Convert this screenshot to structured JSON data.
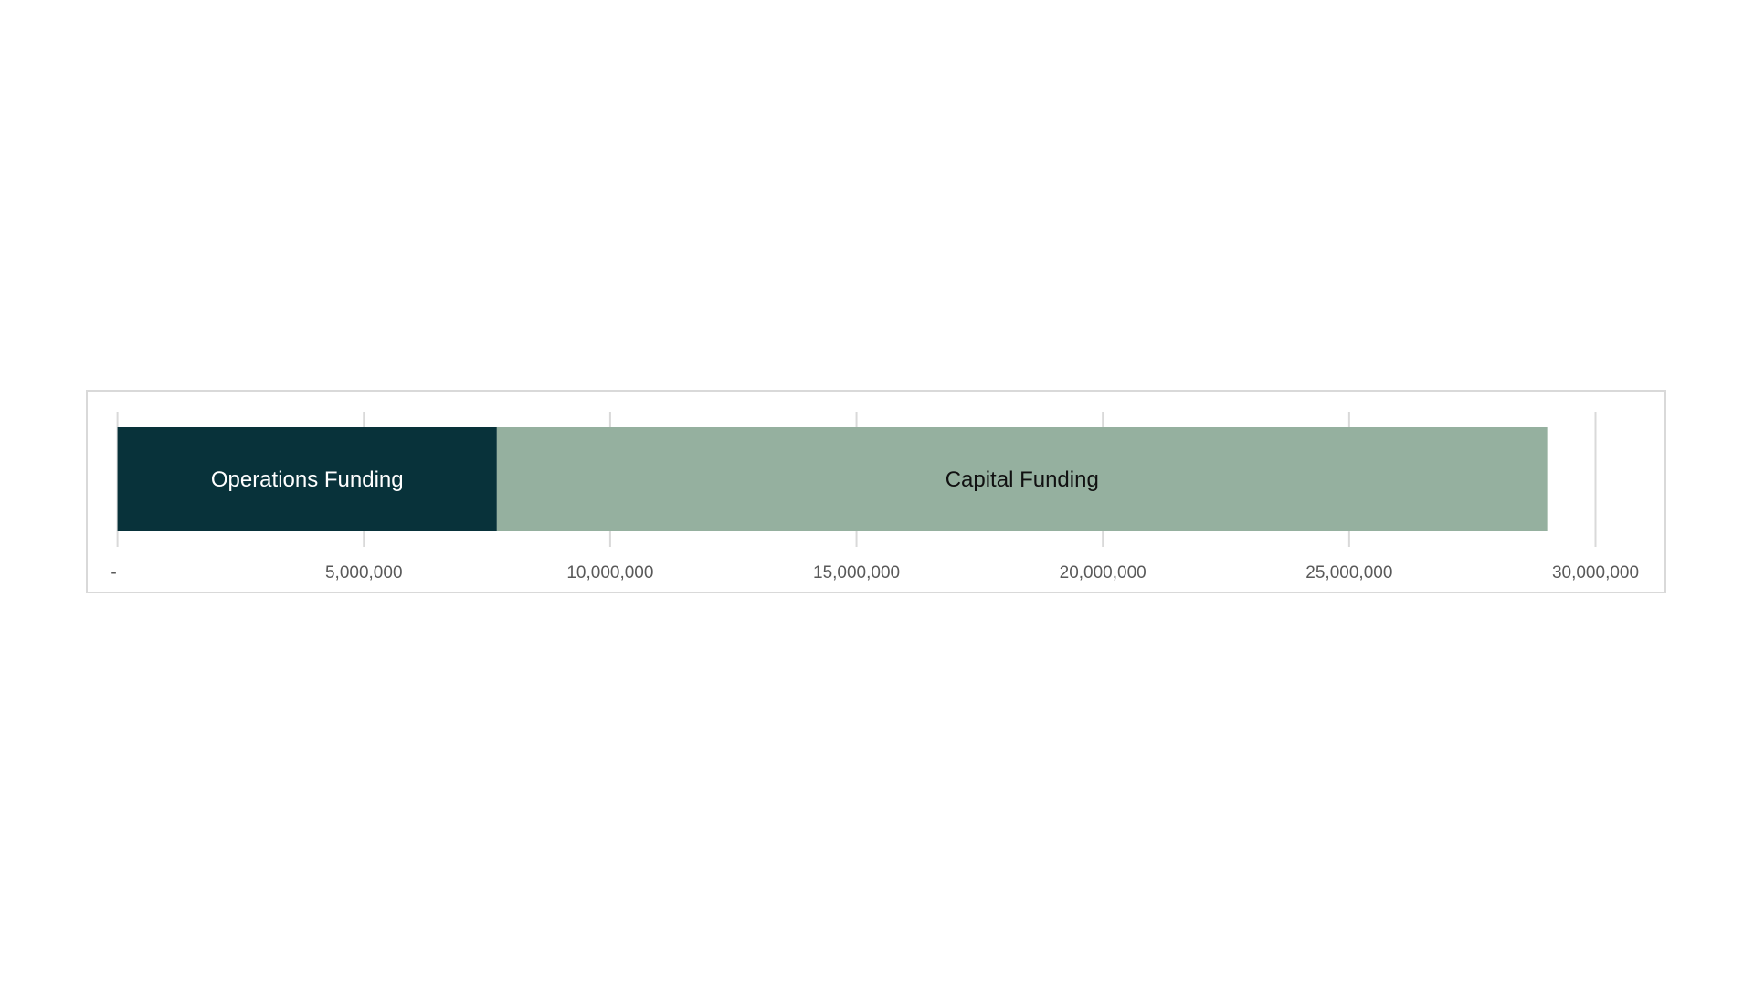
{
  "chart_data": {
    "type": "bar",
    "orientation": "horizontal",
    "stacked": true,
    "categories": [
      ""
    ],
    "series": [
      {
        "name": "Operations Funding",
        "values": [
          7700000
        ],
        "color": "#08323a",
        "label_color": "#ffffff"
      },
      {
        "name": "Capital Funding",
        "values": [
          21320000
        ],
        "color": "#95b09f",
        "label_color": "#111111"
      }
    ],
    "xlim": [
      0,
      30000000
    ],
    "xticks": [
      0,
      5000000,
      10000000,
      15000000,
      20000000,
      25000000,
      30000000
    ],
    "xtick_labels": [
      "-",
      "5,000,000",
      "10,000,000",
      "15,000,000",
      "20,000,000",
      "25,000,000",
      "30,000,000"
    ],
    "grid": true,
    "legend": "none (labels inside bars)",
    "title": "",
    "xlabel": "",
    "ylabel": ""
  }
}
